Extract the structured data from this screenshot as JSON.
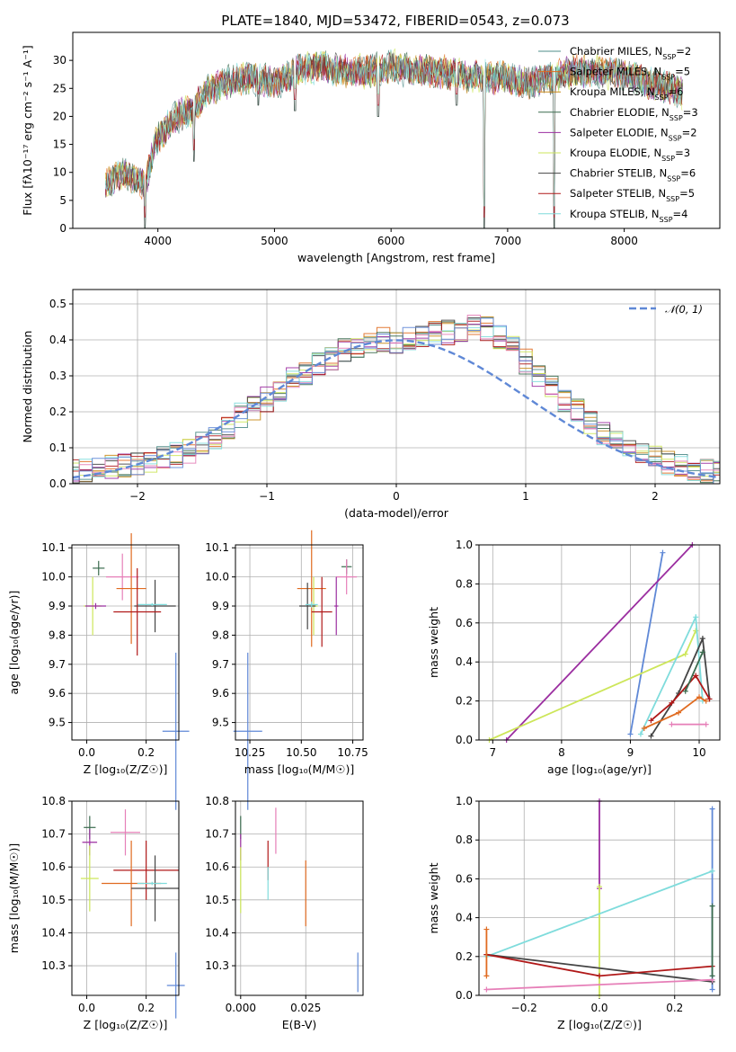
{
  "title": "PLATE=1840, MJD=53472, FIBERID=0543, z=0.073",
  "colors": {
    "Chabrier MILES": "#4e8c88",
    "Salpeter MILES": "#e06b20",
    "Kroupa MILES": "#c88a18",
    "Chabrier ELODIE": "#3a6b4e",
    "Salpeter ELODIE": "#9b2ea0",
    "Kroupa ELODIE": "#cde65a",
    "Chabrier STELIB": "#444444",
    "Salpeter STELIB": "#b01818",
    "Kroupa STELIB": "#7fdcdc",
    "pink": "#e67fb8",
    "blue": "#5f88d6"
  },
  "chart_data": [
    {
      "type": "line",
      "id": "spectrum",
      "title": "PLATE=1840, MJD=53472, FIBERID=0543, z=0.073",
      "xlabel": "wavelength [Angstrom, rest frame]",
      "ylabel": "Flux [fλ10⁻¹⁷ erg cm⁻² s⁻¹ A⁻¹]",
      "xlim": [
        3270,
        8820
      ],
      "ylim": [
        0,
        35
      ],
      "xticks": [
        4000,
        5000,
        6000,
        7000,
        8000
      ],
      "yticks": [
        0,
        5,
        10,
        15,
        20,
        25,
        30
      ],
      "legend_position": "top-right",
      "legend": [
        "Chabrier MILES, N_SSP=2",
        "Salpeter MILES, N_SSP=5",
        "Kroupa MILES, N_SSP=6",
        "Chabrier ELODIE, N_SSP=3",
        "Salpeter ELODIE, N_SSP=2",
        "Kroupa ELODIE, N_SSP=3",
        "Chabrier STELIB, N_SSP=6",
        "Salpeter STELIB, N_SSP=5",
        "Kroupa STELIB, N_SSP=4"
      ],
      "continuum": [
        [
          3550,
          8
        ],
        [
          3700,
          10
        ],
        [
          3900,
          8
        ],
        [
          3950,
          13
        ],
        [
          4000,
          16
        ],
        [
          4150,
          20
        ],
        [
          4300,
          21
        ],
        [
          4400,
          24
        ],
        [
          4600,
          26
        ],
        [
          4800,
          27
        ],
        [
          5000,
          26
        ],
        [
          5200,
          28
        ],
        [
          5400,
          29
        ],
        [
          5600,
          28
        ],
        [
          5800,
          28
        ],
        [
          6000,
          29
        ],
        [
          6200,
          28
        ],
        [
          6400,
          28
        ],
        [
          6600,
          27.5
        ],
        [
          6800,
          27
        ],
        [
          7000,
          27
        ],
        [
          7200,
          26
        ],
        [
          7400,
          27
        ],
        [
          7600,
          28
        ],
        [
          7800,
          28
        ],
        [
          8000,
          27.5
        ],
        [
          8200,
          26
        ],
        [
          8400,
          25
        ],
        [
          8500,
          24
        ]
      ],
      "dips": [
        [
          3890,
          0
        ],
        [
          4310,
          12
        ],
        [
          4861,
          22
        ],
        [
          5175,
          21
        ],
        [
          5890,
          20
        ],
        [
          6563,
          22
        ],
        [
          6800,
          0
        ],
        [
          7400,
          0
        ]
      ]
    },
    {
      "type": "histogram",
      "id": "residuals",
      "xlabel": "(data-model)/error",
      "ylabel": "Normed distribution",
      "xlim": [
        -2.5,
        2.5
      ],
      "ylim": [
        0,
        0.54
      ],
      "xticks": [
        -2,
        -1,
        0,
        1,
        2
      ],
      "yticks": [
        0,
        0.1,
        0.2,
        0.3,
        0.4,
        0.5
      ],
      "legend": [
        "𝒩(0, 1)"
      ],
      "legend_position": "top-right",
      "bin_width": 0.1,
      "mean_profile": [
        0.018,
        0.02,
        0.022,
        0.025,
        0.028,
        0.032,
        0.036,
        0.04,
        0.045,
        0.05,
        0.055,
        0.062,
        0.07,
        0.08,
        0.092,
        0.11,
        0.13,
        0.16,
        0.19,
        0.21,
        0.235,
        0.26,
        0.29,
        0.31,
        0.33,
        0.345,
        0.37,
        0.38,
        0.39,
        0.4,
        0.39,
        0.4,
        0.41,
        0.42,
        0.42,
        0.43,
        0.44,
        0.43,
        0.41,
        0.38,
        0.34,
        0.3,
        0.27,
        0.23,
        0.2,
        0.17,
        0.14,
        0.12,
        0.1,
        0.085,
        0.07,
        0.06,
        0.05,
        0.04,
        0.036,
        0.032,
        0.03,
        0.026,
        0.024,
        0.02,
        0.018
      ],
      "gaussian": {
        "mean": 0,
        "sigma": 1
      }
    },
    {
      "type": "scatter",
      "id": "age-Z",
      "xlabel": "Z [log₁₀(Z/Z☉)]",
      "ylabel": "age  [log₁₀(age/yr)]",
      "xlim": [
        -0.05,
        0.31
      ],
      "ylim": [
        9.44,
        10.11
      ],
      "xticks": [
        0.0,
        0.2
      ],
      "yticks": [
        9.5,
        9.6,
        9.7,
        9.8,
        9.9,
        10.0,
        10.1
      ],
      "points": [
        {
          "c": "Chabrier ELODIE",
          "x": 0.04,
          "y": 10.03,
          "xe": 0.02,
          "ye": 0.025
        },
        {
          "c": "pink",
          "x": 0.12,
          "y": 10.0,
          "xe": 0.055,
          "ye": 0.08
        },
        {
          "c": "Salpeter MILES",
          "x": 0.15,
          "y": 9.96,
          "xe": 0.05,
          "ye": 0.19
        },
        {
          "c": "Kroupa ELODIE",
          "x": 0.02,
          "y": 9.9,
          "xe": 0.03,
          "ye": 0.1
        },
        {
          "c": "Salpeter ELODIE",
          "x": 0.03,
          "y": 9.9,
          "xe": 0.035,
          "ye": 0.01
        },
        {
          "c": "Chabrier STELIB",
          "x": 0.23,
          "y": 9.9,
          "xe": 0.07,
          "ye": 0.09
        },
        {
          "c": "Kroupa STELIB",
          "x": 0.22,
          "y": 9.905,
          "xe": 0.05,
          "ye": 0.005
        },
        {
          "c": "Salpeter STELIB",
          "x": 0.17,
          "y": 9.88,
          "xe": 0.08,
          "ye": 0.15
        },
        {
          "c": "blue",
          "x": 0.3,
          "y": 9.47,
          "xe": 0.045,
          "ye": 0.27
        }
      ]
    },
    {
      "type": "scatter",
      "id": "age-mass",
      "xlabel": "mass [log₁₀(M/M☉)]",
      "ylabel": "",
      "xlim": [
        10.18,
        10.8
      ],
      "ylim": [
        9.44,
        10.11
      ],
      "xticks": [
        10.25,
        10.5,
        10.75
      ],
      "yticks": [
        9.5,
        9.6,
        9.7,
        9.8,
        9.9,
        10.0,
        10.1
      ],
      "points": [
        {
          "c": "Chabrier ELODIE",
          "x": 10.72,
          "y": 10.035,
          "xe": 0.025,
          "ye": 0.025
        },
        {
          "c": "pink",
          "x": 10.72,
          "y": 10.0,
          "xe": 0.05,
          "ye": 0.06
        },
        {
          "c": "Salpeter MILES",
          "x": 10.55,
          "y": 9.96,
          "xe": 0.07,
          "ye": 0.2
        },
        {
          "c": "Kroupa ELODIE",
          "x": 10.56,
          "y": 9.9,
          "xe": 0.02,
          "ye": 0.1
        },
        {
          "c": "Salpeter ELODIE",
          "x": 10.67,
          "y": 9.9,
          "xe": 0.01,
          "ye": 0.1
        },
        {
          "c": "Chabrier STELIB",
          "x": 10.53,
          "y": 9.9,
          "xe": 0.04,
          "ye": 0.08
        },
        {
          "c": "Kroupa STELIB",
          "x": 10.55,
          "y": 9.905,
          "xe": 0.03,
          "ye": 0.01
        },
        {
          "c": "Salpeter STELIB",
          "x": 10.6,
          "y": 9.88,
          "xe": 0.05,
          "ye": 0.12
        },
        {
          "c": "blue",
          "x": 10.24,
          "y": 9.47,
          "xe": 0.07,
          "ye": 0.27
        }
      ]
    },
    {
      "type": "line",
      "id": "weight-age",
      "xlabel": "age  [log₁₀(age/yr)]",
      "ylabel": "mass weight",
      "xlim": [
        6.8,
        10.3
      ],
      "ylim": [
        0,
        1
      ],
      "xticks": [
        7,
        8,
        9,
        10
      ],
      "yticks": [
        0,
        0.2,
        0.4,
        0.6,
        0.8,
        1.0
      ],
      "series": [
        {
          "c": "blue",
          "x": [
            9.0,
            9.47
          ],
          "y": [
            0.03,
            0.96
          ]
        },
        {
          "c": "Salpeter ELODIE",
          "x": [
            7.2,
            9.9
          ],
          "y": [
            0.0,
            1.0
          ]
        },
        {
          "c": "Kroupa ELODIE",
          "x": [
            6.95,
            9.8,
            9.95
          ],
          "y": [
            0.0,
            0.44,
            0.56
          ]
        },
        {
          "c": "Kroupa STELIB",
          "x": [
            9.15,
            9.95,
            10.05
          ],
          "y": [
            0.03,
            0.63,
            0.2
          ]
        },
        {
          "c": "Chabrier STELIB",
          "x": [
            9.3,
            9.7,
            10.05,
            10.15
          ],
          "y": [
            0.02,
            0.24,
            0.52,
            0.21
          ]
        },
        {
          "c": "Salpeter STELIB",
          "x": [
            9.3,
            9.6,
            9.95,
            10.15
          ],
          "y": [
            0.1,
            0.19,
            0.33,
            0.21
          ]
        },
        {
          "c": "Salpeter MILES",
          "x": [
            9.2,
            9.7,
            10.0,
            10.1
          ],
          "y": [
            0.06,
            0.14,
            0.22,
            0.2
          ]
        },
        {
          "c": "pink",
          "x": [
            9.6,
            10.1
          ],
          "y": [
            0.08,
            0.08
          ]
        },
        {
          "c": "Chabrier ELODIE",
          "x": [
            9.8,
            10.05
          ],
          "y": [
            0.25,
            0.45
          ]
        }
      ]
    },
    {
      "type": "scatter",
      "id": "mass-Z",
      "xlabel": "Z [log₁₀(Z/Z☉)]",
      "ylabel": "mass [log₁₀(M/M☉)]",
      "xlim": [
        -0.05,
        0.31
      ],
      "ylim": [
        10.21,
        10.8
      ],
      "xticks": [
        0.0,
        0.2
      ],
      "yticks": [
        10.3,
        10.4,
        10.5,
        10.6,
        10.7,
        10.8
      ],
      "points": [
        {
          "c": "Chabrier ELODIE",
          "x": 0.01,
          "y": 10.72,
          "xe": 0.02,
          "ye": 0.035
        },
        {
          "c": "pink",
          "x": 0.13,
          "y": 10.705,
          "xe": 0.05,
          "ye": 0.07
        },
        {
          "c": "Salpeter ELODIE",
          "x": 0.01,
          "y": 10.675,
          "xe": 0.025,
          "ye": 0.04
        },
        {
          "c": "Salpeter STELIB",
          "x": 0.2,
          "y": 10.59,
          "xe": 0.11,
          "ye": 0.09
        },
        {
          "c": "Kroupa ELODIE",
          "x": 0.01,
          "y": 10.565,
          "xe": 0.03,
          "ye": 0.1
        },
        {
          "c": "Salpeter MILES",
          "x": 0.15,
          "y": 10.55,
          "xe": 0.1,
          "ye": 0.13
        },
        {
          "c": "Chabrier STELIB",
          "x": 0.23,
          "y": 10.535,
          "xe": 0.08,
          "ye": 0.1
        },
        {
          "c": "Kroupa STELIB",
          "x": 0.22,
          "y": 10.55,
          "xe": 0.05,
          "ye": 0.005
        },
        {
          "c": "blue",
          "x": 0.3,
          "y": 10.24,
          "xe": 0.03,
          "ye": 0.1
        }
      ]
    },
    {
      "type": "scatter",
      "id": "mass-ebv",
      "xlabel": "E(B-V)",
      "ylabel": "",
      "xlim": [
        -0.002,
        0.047
      ],
      "ylim": [
        10.21,
        10.8
      ],
      "xticks": [
        0.0,
        0.025
      ],
      "yticks": [
        10.3,
        10.4,
        10.5,
        10.6,
        10.7,
        10.8
      ],
      "points": [
        {
          "c": "Chabrier ELODIE",
          "x": 0.0,
          "y": 10.72,
          "xe": 0,
          "ye": 0.035
        },
        {
          "c": "Salpeter ELODIE",
          "x": 0.0,
          "y": 10.66,
          "xe": 0,
          "ye": 0.04
        },
        {
          "c": "Kroupa ELODIE",
          "x": 0.0,
          "y": 10.56,
          "xe": 0,
          "ye": 0.1
        },
        {
          "c": "Salpeter STELIB",
          "x": 0.0105,
          "y": 10.62,
          "xe": 0,
          "ye": 0.06
        },
        {
          "c": "Kroupa STELIB",
          "x": 0.0105,
          "y": 10.55,
          "xe": 0,
          "ye": 0.05
        },
        {
          "c": "pink",
          "x": 0.0135,
          "y": 10.71,
          "xe": 0,
          "ye": 0.07
        },
        {
          "c": "Salpeter MILES",
          "x": 0.025,
          "y": 10.52,
          "xe": 0,
          "ye": 0.1
        },
        {
          "c": "blue",
          "x": 0.045,
          "y": 10.28,
          "xe": 0,
          "ye": 0.06
        }
      ]
    },
    {
      "type": "line",
      "id": "weight-Z",
      "xlabel": "Z [log₁₀(Z/Z☉)]",
      "ylabel": "mass weight",
      "xlim": [
        -0.32,
        0.32
      ],
      "ylim": [
        0,
        1
      ],
      "xticks": [
        -0.2,
        0.0,
        0.2
      ],
      "yticks": [
        0,
        0.2,
        0.4,
        0.6,
        0.8,
        1.0
      ],
      "series": [
        {
          "c": "Salpeter ELODIE",
          "x": [
            0.0,
            0.0
          ],
          "y": [
            0.55,
            1.0
          ]
        },
        {
          "c": "Kroupa ELODIE",
          "x": [
            0.0,
            0.0
          ],
          "y": [
            0.0,
            0.56
          ]
        },
        {
          "c": "blue",
          "x": [
            0.3,
            0.3
          ],
          "y": [
            0.03,
            0.96
          ]
        },
        {
          "c": "Kroupa STELIB",
          "x": [
            -0.3,
            0.3
          ],
          "y": [
            0.2,
            0.64
          ]
        },
        {
          "c": "Chabrier STELIB",
          "x": [
            -0.3,
            0.3
          ],
          "y": [
            0.21,
            0.07
          ]
        },
        {
          "c": "Salpeter STELIB",
          "x": [
            -0.3,
            0.0,
            0.3
          ],
          "y": [
            0.21,
            0.1,
            0.15
          ]
        },
        {
          "c": "pink",
          "x": [
            -0.3,
            0.3
          ],
          "y": [
            0.03,
            0.08
          ]
        },
        {
          "c": "Salpeter MILES",
          "x": [
            -0.3,
            -0.3
          ],
          "y": [
            0.1,
            0.34
          ]
        },
        {
          "c": "Chabrier ELODIE",
          "x": [
            0.3,
            0.3
          ],
          "y": [
            0.1,
            0.46
          ]
        }
      ]
    }
  ]
}
